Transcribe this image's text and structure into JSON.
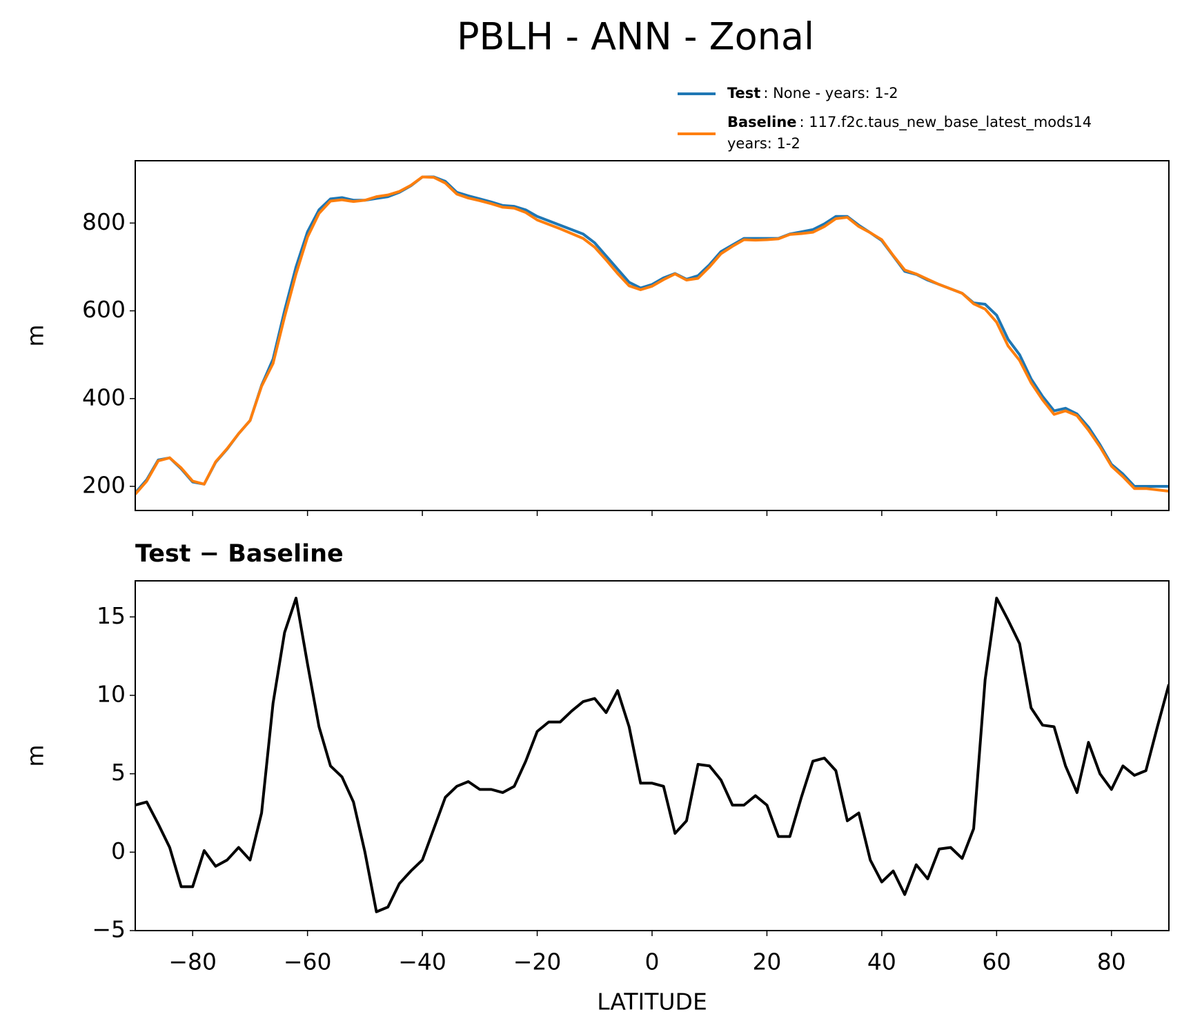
{
  "chart_data": [
    {
      "type": "line",
      "title": "PBLH - ANN - Zonal",
      "ylabel": "m",
      "x": [
        -90,
        -88,
        -86,
        -84,
        -82,
        -80,
        -78,
        -76,
        -74,
        -72,
        -70,
        -68,
        -66,
        -64,
        -62,
        -60,
        -58,
        -56,
        -54,
        -52,
        -50,
        -48,
        -46,
        -44,
        -42,
        -40,
        -38,
        -36,
        -34,
        -32,
        -30,
        -28,
        -26,
        -24,
        -22,
        -20,
        -18,
        -16,
        -14,
        -12,
        -10,
        -8,
        -6,
        -4,
        -2,
        0,
        2,
        4,
        6,
        8,
        10,
        12,
        14,
        16,
        18,
        20,
        22,
        24,
        26,
        28,
        30,
        32,
        34,
        36,
        38,
        40,
        42,
        44,
        46,
        48,
        50,
        52,
        54,
        56,
        58,
        60,
        62,
        64,
        66,
        68,
        70,
        72,
        74,
        76,
        78,
        80,
        82,
        84,
        86,
        88,
        90
      ],
      "series": [
        {
          "name": "Test",
          "description": [
            ": None - years: 1-2"
          ],
          "color": "#1f77b4",
          "values": [
            185,
            215,
            260,
            265,
            240,
            210,
            205,
            255,
            285,
            320,
            350,
            430,
            490,
            600,
            700,
            780,
            830,
            855,
            858,
            852,
            852,
            856,
            860,
            870,
            885,
            905,
            905,
            895,
            870,
            862,
            855,
            848,
            840,
            838,
            830,
            815,
            805,
            795,
            785,
            775,
            755,
            725,
            695,
            665,
            652,
            660,
            675,
            685,
            672,
            680,
            705,
            735,
            750,
            765,
            765,
            765,
            765,
            775,
            780,
            785,
            798,
            815,
            815,
            795,
            778,
            760,
            725,
            690,
            683,
            670,
            660,
            650,
            640,
            618,
            615,
            590,
            535,
            500,
            445,
            405,
            372,
            378,
            365,
            335,
            295,
            250,
            228,
            200,
            200,
            200,
            200
          ]
        },
        {
          "name": "Baseline",
          "description": [
            ": 117.f2c.taus_new_base_latest_mods14",
            "years: 1-2"
          ],
          "color": "#ff7f0e",
          "values": [
            182,
            212,
            258,
            265,
            242,
            212,
            205,
            256,
            286,
            320,
            350,
            428,
            480,
            586,
            684,
            768,
            822,
            850,
            853,
            849,
            852,
            860,
            864,
            872,
            886,
            905,
            904,
            891,
            866,
            857,
            851,
            844,
            836,
            834,
            824,
            807,
            797,
            787,
            776,
            765,
            745,
            716,
            685,
            657,
            648,
            656,
            671,
            684,
            670,
            674,
            700,
            730,
            747,
            762,
            761,
            762,
            764,
            774,
            776,
            779,
            792,
            810,
            813,
            792,
            778,
            762,
            726,
            693,
            684,
            672,
            660,
            650,
            640,
            616,
            604,
            574,
            520,
            487,
            436,
            397,
            364,
            372,
            361,
            328,
            290,
            246,
            222,
            195,
            195,
            192,
            189
          ]
        }
      ],
      "xlim": [
        -90,
        90
      ],
      "xticks": [
        {
          "value": -80,
          "label": "−80"
        },
        {
          "value": -60,
          "label": "−60"
        },
        {
          "value": -40,
          "label": "−40"
        },
        {
          "value": -20,
          "label": "−20"
        },
        0,
        20,
        40,
        60,
        80
      ],
      "ylim": [
        145,
        942
      ],
      "yticks": [
        200,
        400,
        600,
        800
      ]
    },
    {
      "type": "line",
      "title": "Test − Baseline",
      "ylabel": "m",
      "xlabel": "LATITUDE",
      "x": [
        -90,
        -88,
        -86,
        -84,
        -82,
        -80,
        -78,
        -76,
        -74,
        -72,
        -70,
        -68,
        -66,
        -64,
        -62,
        -60,
        -58,
        -56,
        -54,
        -52,
        -50,
        -48,
        -46,
        -44,
        -42,
        -40,
        -38,
        -36,
        -34,
        -32,
        -30,
        -28,
        -26,
        -24,
        -22,
        -20,
        -18,
        -16,
        -14,
        -12,
        -10,
        -8,
        -6,
        -4,
        -2,
        0,
        2,
        4,
        6,
        8,
        10,
        12,
        14,
        16,
        18,
        20,
        22,
        24,
        26,
        28,
        30,
        32,
        34,
        36,
        38,
        40,
        42,
        44,
        46,
        48,
        50,
        52,
        54,
        56,
        58,
        60,
        62,
        64,
        66,
        68,
        70,
        72,
        74,
        76,
        78,
        80,
        82,
        84,
        86,
        88,
        90
      ],
      "color": "#000000",
      "values": [
        3.0,
        3.2,
        1.8,
        0.3,
        -2.2,
        -2.2,
        0.1,
        -0.9,
        -0.5,
        0.3,
        -0.5,
        2.5,
        9.5,
        14,
        16.2,
        12,
        8,
        5.5,
        4.8,
        3.2,
        0,
        -3.8,
        -3.5,
        -2.0,
        -1.2,
        -0.5,
        1.5,
        3.5,
        4.2,
        4.5,
        4.0,
        4.0,
        3.8,
        4.2,
        5.8,
        7.7,
        8.3,
        8.3,
        9.0,
        9.6,
        9.8,
        8.9,
        10.3,
        8.0,
        4.4,
        4.4,
        4.2,
        1.2,
        2.0,
        5.6,
        5.5,
        4.6,
        3.0,
        3.0,
        3.6,
        3.0,
        1.0,
        1.0,
        3.5,
        5.8,
        6.0,
        5.2,
        2.0,
        2.5,
        -0.5,
        -1.9,
        -1.2,
        -2.7,
        -0.8,
        -1.7,
        0.2,
        0.3,
        -0.4,
        1.5,
        11,
        16.2,
        14.8,
        13.3,
        9.2,
        8.1,
        8.0,
        5.5,
        3.8,
        7.0,
        5.0,
        4.0,
        5.5,
        4.9,
        5.2,
        8.0,
        10.7
      ],
      "xlim": [
        -90,
        90
      ],
      "xticks": [
        {
          "value": -80,
          "label": "−80"
        },
        {
          "value": -60,
          "label": "−60"
        },
        {
          "value": -40,
          "label": "−40"
        },
        {
          "value": -20,
          "label": "−20"
        },
        0,
        20,
        40,
        60,
        80
      ],
      "ylim": [
        -5,
        17.3
      ],
      "yticks": [
        {
          "value": -5,
          "label": "−5"
        },
        0,
        5,
        10,
        15
      ]
    }
  ]
}
